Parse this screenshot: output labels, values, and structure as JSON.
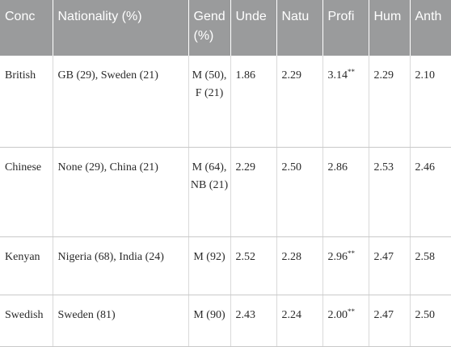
{
  "headers": {
    "concept": "Conc",
    "nationality": "Nationality (%)",
    "gender": "Gend (%)",
    "understanding": "Unde",
    "nature": "Natu",
    "proficiency": "Profi",
    "humanity": "Hum",
    "anthro": "Anth"
  },
  "rows": [
    {
      "concept": "British",
      "nationality": "GB (29), Sweden (21)",
      "gender": "M (50), F (21)",
      "understanding": "1.86",
      "nature": "2.29",
      "proficiency": "3.14",
      "proficiency_mark": "**",
      "humanity": "2.29",
      "anthro": "2.10"
    },
    {
      "concept": "Chinese",
      "nationality": "None (29), China (21)",
      "gender": "M (64), NB (21)",
      "understanding": "2.29",
      "nature": "2.50",
      "proficiency": "2.86",
      "proficiency_mark": "",
      "humanity": "2.53",
      "anthro": "2.46"
    },
    {
      "concept": "Kenyan",
      "nationality": "Nigeria (68), India (24)",
      "gender": "M (92)",
      "understanding": "2.52",
      "nature": "2.28",
      "proficiency": "2.96",
      "proficiency_mark": "**",
      "humanity": "2.47",
      "anthro": "2.58"
    },
    {
      "concept": "Swedish",
      "nationality": "Sweden (81)",
      "gender": "M (90)",
      "understanding": "2.43",
      "nature": "2.24",
      "proficiency": "2.00",
      "proficiency_mark": "**",
      "humanity": "2.47",
      "anthro": "2.50"
    }
  ]
}
